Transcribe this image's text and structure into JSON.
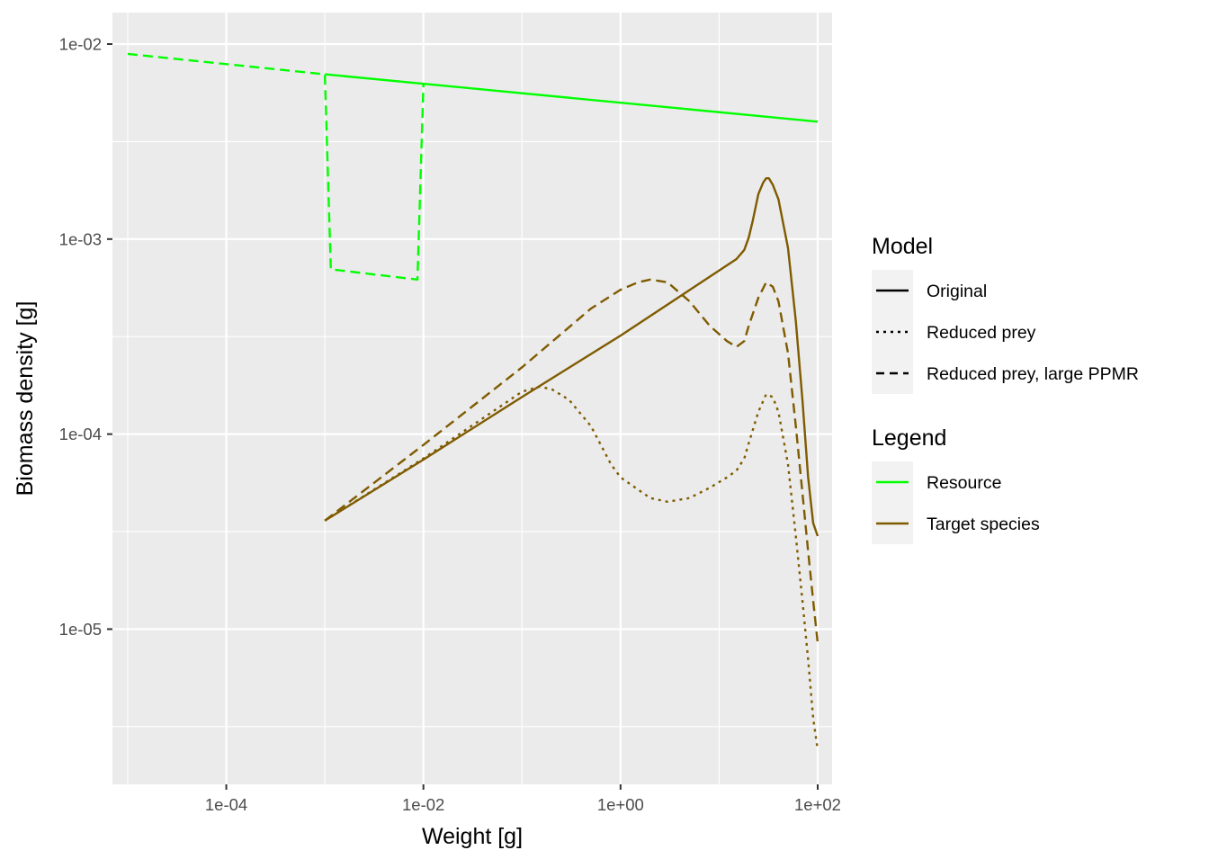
{
  "chart_data": {
    "type": "line",
    "title": "",
    "xlabel": "Weight [g]",
    "ylabel": "Biomass density [g]",
    "x_scale": "log10",
    "y_scale": "log10",
    "xlim": [
      7e-06,
      140
    ],
    "ylim": [
      1.6e-06,
      0.0145
    ],
    "x_ticks": [
      {
        "value": 0.0001,
        "label": "1e-04"
      },
      {
        "value": 0.01,
        "label": "1e-02"
      },
      {
        "value": 1,
        "label": "1e+00"
      },
      {
        "value": 100,
        "label": "1e+02"
      }
    ],
    "x_minor_ticks": [
      1e-05,
      0.001,
      0.1,
      10
    ],
    "y_ticks": [
      {
        "value": 1e-05,
        "label": "1e-05"
      },
      {
        "value": 0.0001,
        "label": "1e-04"
      },
      {
        "value": 0.001,
        "label": "1e-03"
      },
      {
        "value": 0.01,
        "label": "1e-02"
      }
    ],
    "y_minor_ticks": [
      3.1623e-06,
      3.1623e-05,
      0.00031623,
      0.0031623
    ],
    "grid": true,
    "panel_background": "#ebebeb",
    "legend_position": "right",
    "legends": [
      {
        "title": "Model",
        "entries": [
          {
            "label": "Original",
            "linetype": "solid"
          },
          {
            "label": "Reduced prey",
            "linetype": "dotted"
          },
          {
            "label": "Reduced prey, large PPMR",
            "linetype": "dashed"
          }
        ]
      },
      {
        "title": "Legend",
        "entries": [
          {
            "label": "Resource",
            "color": "#00ff00"
          },
          {
            "label": "Target species",
            "color": "#7f5b00"
          }
        ]
      }
    ],
    "series": [
      {
        "species": "Resource",
        "model": "Original",
        "color": "#00ff00",
        "linetype": "solid",
        "x": [
          0.001,
          100
        ],
        "y": [
          0.007,
          0.004
        ]
      },
      {
        "species": "Resource",
        "model": "Reduced prey, large PPMR",
        "color": "#00ff00",
        "linetype": "dashed",
        "x": [
          1e-05,
          0.001,
          0.00115,
          0.0087,
          0.01,
          0.01
        ],
        "y": [
          0.0089,
          0.007,
          0.0007,
          0.00062,
          0.0062,
          0.0062
        ]
      },
      {
        "species": "Target species",
        "model": "Original",
        "color": "#7f5b00",
        "linetype": "solid",
        "x": [
          0.001,
          0.01,
          0.1,
          1,
          10,
          15,
          18,
          20,
          22,
          25,
          28,
          30,
          32,
          35,
          40,
          50,
          60,
          70,
          80,
          90,
          100
        ],
        "y": [
          3.6e-05,
          7.4e-05,
          0.000155,
          0.00032,
          0.00069,
          0.00079,
          0.00088,
          0.00102,
          0.00125,
          0.0017,
          0.00195,
          0.00205,
          0.00205,
          0.0019,
          0.0016,
          0.0009,
          0.00038,
          0.00015,
          6e-05,
          3.5e-05,
          3e-05
        ]
      },
      {
        "species": "Target species",
        "model": "Reduced prey",
        "color": "#7f5b00",
        "linetype": "dotted",
        "x": [
          0.001,
          0.01,
          0.05,
          0.1,
          0.15,
          0.2,
          0.3,
          0.5,
          0.8,
          1,
          2,
          3,
          5,
          8,
          12,
          15,
          18,
          20,
          25,
          30,
          35,
          40,
          50,
          60,
          70,
          80,
          90,
          100
        ],
        "y": [
          3.6e-05,
          7.5e-05,
          0.00013,
          0.000165,
          0.000175,
          0.00017,
          0.00015,
          0.00011,
          7e-05,
          6e-05,
          4.7e-05,
          4.5e-05,
          4.7e-05,
          5.3e-05,
          6e-05,
          6.5e-05,
          7.5e-05,
          9e-05,
          0.00013,
          0.00016,
          0.000155,
          0.00013,
          7e-05,
          3e-05,
          1.4e-05,
          7e-06,
          3.5e-06,
          2.4e-06
        ]
      },
      {
        "species": "Target species",
        "model": "Reduced prey, large PPMR",
        "color": "#7f5b00",
        "linetype": "dashed",
        "x": [
          0.001,
          0.01,
          0.1,
          0.5,
          1,
          1.5,
          2,
          3,
          5,
          8,
          12,
          15,
          18,
          20,
          25,
          30,
          35,
          40,
          50,
          60,
          70,
          80,
          90,
          100
        ],
        "y": [
          3.6e-05,
          8.8e-05,
          0.00022,
          0.00044,
          0.00055,
          0.0006,
          0.00062,
          0.0006,
          0.00048,
          0.00036,
          0.0003,
          0.00028,
          0.0003,
          0.00036,
          0.0005,
          0.0006,
          0.00057,
          0.00048,
          0.00026,
          0.00011,
          5e-05,
          2.5e-05,
          1.4e-05,
          8.5e-06
        ]
      }
    ]
  }
}
